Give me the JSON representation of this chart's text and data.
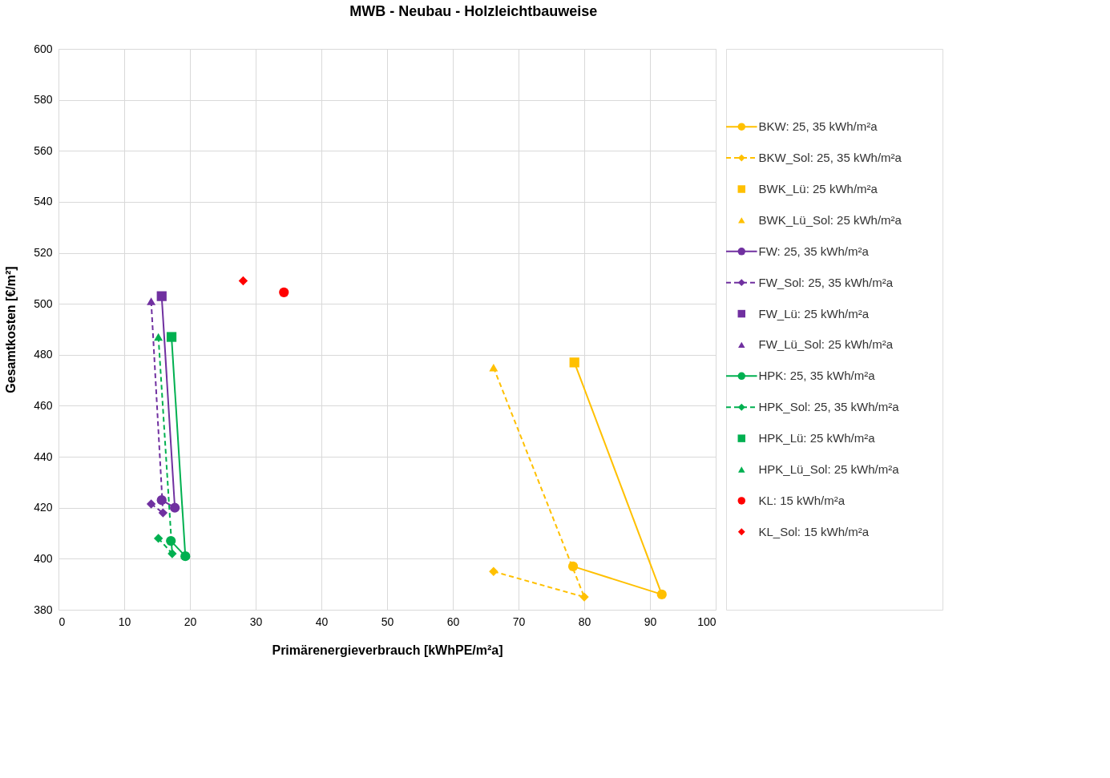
{
  "chart_data": {
    "type": "scatter",
    "title": "MWB - Neubau - Holzleichtbauweise",
    "xlabel": "Primärenergieverbrauch [kWhPE/m²a]",
    "ylabel": "Gesamtkosten [€/m²]",
    "xlim": [
      0,
      100
    ],
    "xticks": [
      0,
      10,
      20,
      30,
      40,
      50,
      60,
      70,
      80,
      90,
      100
    ],
    "ylim": [
      380,
      600
    ],
    "yticks": [
      380,
      400,
      420,
      440,
      460,
      480,
      500,
      520,
      540,
      560,
      580,
      600
    ],
    "grid": true,
    "legend": "right",
    "series": [
      {
        "name": "BKW: 25, 35 kWh/m²a",
        "color": "#ffc000",
        "type": "line",
        "marker": "circle",
        "line_style": "solid",
        "x": [
          78.3,
          91.8
        ],
        "values": [
          397,
          386
        ]
      },
      {
        "name": "BKW_Sol: 25, 35 kWh/m²a",
        "color": "#ffc000",
        "type": "line",
        "marker": "diamond",
        "line_style": "dashed",
        "x": [
          66.2,
          80
        ],
        "values": [
          395,
          385
        ]
      },
      {
        "name": "BWK_Lü: 25 kWh/m²a",
        "color": "#ffc000",
        "type": "scatter",
        "marker": "square",
        "x": [
          78.5
        ],
        "values": [
          477
        ]
      },
      {
        "name": "BWK_Lü_Sol: 25 kWh/m²a",
        "color": "#ffc000",
        "type": "scatter",
        "marker": "triangle",
        "x": [
          66.2
        ],
        "values": [
          475
        ]
      },
      {
        "name": "FW: 25, 35 kWh/m²a",
        "color": "#7030a0",
        "type": "line",
        "marker": "circle",
        "line_style": "solid",
        "x": [
          15.7,
          17.7
        ],
        "values": [
          423,
          420
        ]
      },
      {
        "name": "FW_Sol: 25, 35 kWh/m²a",
        "color": "#7030a0",
        "type": "line",
        "marker": "diamond",
        "line_style": "dashed",
        "x": [
          14.1,
          15.9
        ],
        "values": [
          421.5,
          418
        ]
      },
      {
        "name": "FW_Lü: 25 kWh/m²a",
        "color": "#7030a0",
        "type": "scatter",
        "marker": "square",
        "x": [
          15.7
        ],
        "values": [
          503
        ]
      },
      {
        "name": "FW_Lü_Sol: 25 kWh/m²a",
        "color": "#7030a0",
        "type": "scatter",
        "marker": "triangle",
        "x": [
          14.1
        ],
        "values": [
          501
        ]
      },
      {
        "name": "HPK: 25, 35 kWh/m²a",
        "color": "#00b050",
        "type": "line",
        "marker": "circle",
        "line_style": "solid",
        "x": [
          17.1,
          19.3
        ],
        "values": [
          407,
          401
        ]
      },
      {
        "name": "HPK_Sol: 25, 35 kWh/m²a",
        "color": "#00b050",
        "type": "line",
        "marker": "diamond",
        "line_style": "dashed",
        "x": [
          15.2,
          17.3
        ],
        "values": [
          408,
          402
        ]
      },
      {
        "name": "HPK_Lü: 25 kWh/m²a",
        "color": "#00b050",
        "type": "scatter",
        "marker": "square",
        "x": [
          17.2
        ],
        "values": [
          487
        ]
      },
      {
        "name": "HPK_Lü_Sol: 25 kWh/m²a",
        "color": "#00b050",
        "type": "scatter",
        "marker": "triangle",
        "x": [
          15.2
        ],
        "values": [
          487
        ]
      },
      {
        "name": "KL: 15 kWh/m²a",
        "color": "#ff0000",
        "type": "scatter",
        "marker": "circle",
        "x": [
          34.3
        ],
        "values": [
          504.5
        ]
      },
      {
        "name": "KL_Sol: 15 kWh/m²a",
        "color": "#ff0000",
        "type": "scatter",
        "marker": "diamond",
        "x": [
          28.1
        ],
        "values": [
          509
        ]
      },
      {
        "color": "#ffc000",
        "type": "line",
        "marker": "none",
        "line_style": "solid",
        "x": [
          78.5,
          91.8
        ],
        "values": [
          477,
          386
        ]
      },
      {
        "color": "#ffc000",
        "type": "line",
        "marker": "none",
        "line_style": "dashed",
        "x": [
          66.2,
          80
        ],
        "values": [
          475,
          385
        ]
      },
      {
        "color": "#7030a0",
        "type": "line",
        "marker": "none",
        "line_style": "solid",
        "x": [
          15.7,
          17.7
        ],
        "values": [
          503,
          420
        ]
      },
      {
        "color": "#7030a0",
        "type": "line",
        "marker": "none",
        "line_style": "dashed",
        "x": [
          14.1,
          15.9
        ],
        "values": [
          501,
          418
        ]
      },
      {
        "color": "#00b050",
        "type": "line",
        "marker": "none",
        "line_style": "solid",
        "x": [
          17.2,
          19.3
        ],
        "values": [
          487,
          401
        ]
      },
      {
        "color": "#00b050",
        "type": "line",
        "marker": "none",
        "line_style": "dashed",
        "x": [
          15.2,
          17.3
        ],
        "values": [
          487,
          402
        ]
      }
    ]
  }
}
